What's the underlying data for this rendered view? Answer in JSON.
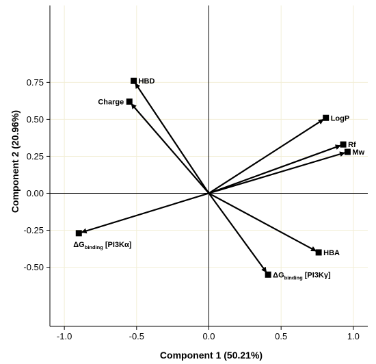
{
  "chart_data": {
    "type": "scatter",
    "subtype": "loading-plot-with-vectors",
    "xlabel": "Component 1 (50.21%)",
    "ylabel": "Component 2 (20.96%)",
    "xlim": [
      -1.1,
      1.1
    ],
    "ylim": [
      -0.9,
      1.27
    ],
    "x_ticks": [
      -1.0,
      -0.5,
      0.0,
      0.5,
      1.0
    ],
    "x_tick_labels": [
      "-1.0",
      "-0.5",
      "0.0",
      "0.5",
      "1.0"
    ],
    "y_ticks": [
      0.75,
      0.5,
      0.25,
      0.0,
      -0.25,
      -0.5
    ],
    "y_tick_labels": [
      "0.75",
      "0.50",
      "0.25",
      "0.00",
      "-0.25",
      "-0.50"
    ],
    "grid": true,
    "grid_color": "#f2eed6",
    "marker": "square",
    "vector_color": "#000000",
    "points": [
      {
        "label": "HBD",
        "x": -0.52,
        "y": 0.76,
        "label_pos": "right"
      },
      {
        "label": "Charge",
        "x": -0.55,
        "y": 0.62,
        "label_pos": "left"
      },
      {
        "label": "LogP",
        "x": 0.81,
        "y": 0.51,
        "label_pos": "right"
      },
      {
        "label": "Rf",
        "x": 0.93,
        "y": 0.33,
        "label_pos": "right"
      },
      {
        "label": "Mw",
        "x": 0.96,
        "y": 0.28,
        "label_pos": "right"
      },
      {
        "label": "HBA",
        "x": 0.76,
        "y": -0.4,
        "label_pos": "right"
      },
      {
        "label": "ΔG",
        "label_sub": "binding",
        "label_tail": " [PI3Kα]",
        "x": -0.9,
        "y": -0.27,
        "label_pos": "below"
      },
      {
        "label": "ΔG",
        "label_sub": "binding",
        "label_tail": " [PI3Kγ]",
        "x": 0.41,
        "y": -0.55,
        "label_pos": "right"
      }
    ]
  }
}
